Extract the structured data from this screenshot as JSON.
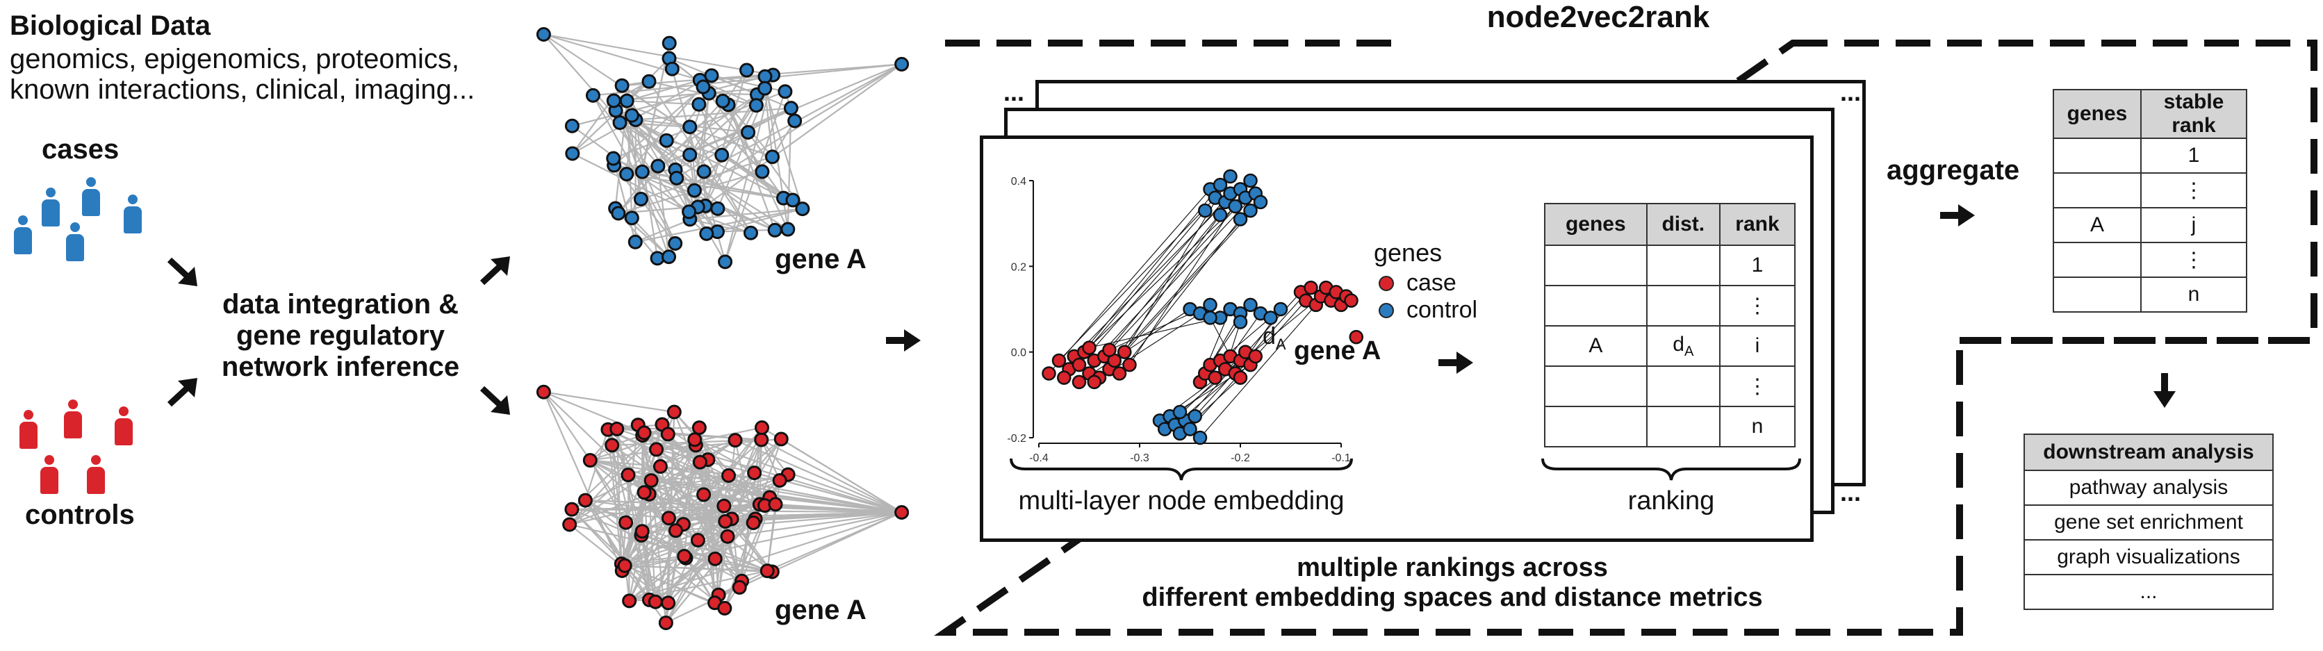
{
  "biological_data": {
    "title": "Biological Data",
    "line1": "genomics, epigenomics, proteomics,",
    "line2": "known interactions, clinical, imaging..."
  },
  "cohorts": {
    "cases": "cases",
    "controls": "controls"
  },
  "integration": {
    "line1": "data integration &",
    "line2": "gene regulatory",
    "line3": "network inference"
  },
  "networks": {
    "top_label": "gene A",
    "bottom_label": "gene A"
  },
  "node2vec2rank": {
    "title": "node2vec2rank",
    "embedding_label": "multi-layer node embedding",
    "ranking_label": "ranking",
    "caption_line1": "multiple rankings across",
    "caption_line2": "different embedding spaces and distance metrics",
    "ellipsis": "..."
  },
  "scatter": {
    "legend_title": "genes",
    "legend_items": [
      "case",
      "control"
    ],
    "point_label": "gene A",
    "distance_label": "d",
    "distance_sub": "A",
    "colors": {
      "case": "#d9242b",
      "control": "#2b7bbf"
    }
  },
  "chart_data": {
    "type": "scatter",
    "xlim": [
      -0.4,
      -0.1
    ],
    "ylim": [
      -0.2,
      0.4
    ],
    "x_ticks": [
      "-0.4",
      "-0.3",
      "-0.2",
      "-0.1"
    ],
    "y_ticks": [
      "0.4",
      "0.2",
      "0.0",
      "-0.2"
    ],
    "series": [
      {
        "name": "case",
        "points": [
          [
            -0.39,
            -0.05
          ],
          [
            -0.38,
            -0.02
          ],
          [
            -0.37,
            -0.04
          ],
          [
            -0.365,
            -0.01
          ],
          [
            -0.36,
            -0.03
          ],
          [
            -0.355,
            0.0
          ],
          [
            -0.35,
            -0.05
          ],
          [
            -0.345,
            -0.02
          ],
          [
            -0.34,
            -0.06
          ],
          [
            -0.335,
            -0.01
          ],
          [
            -0.33,
            -0.04
          ],
          [
            -0.325,
            -0.02
          ],
          [
            -0.32,
            -0.05
          ],
          [
            -0.315,
            0.0
          ],
          [
            -0.31,
            -0.03
          ],
          [
            -0.375,
            -0.06
          ],
          [
            -0.36,
            -0.07
          ],
          [
            -0.345,
            -0.07
          ],
          [
            -0.33,
            0.005
          ],
          [
            -0.35,
            0.01
          ],
          [
            -0.24,
            -0.07
          ],
          [
            -0.235,
            -0.05
          ],
          [
            -0.23,
            -0.03
          ],
          [
            -0.225,
            -0.06
          ],
          [
            -0.22,
            -0.02
          ],
          [
            -0.215,
            -0.04
          ],
          [
            -0.21,
            -0.01
          ],
          [
            -0.205,
            -0.05
          ],
          [
            -0.2,
            -0.02
          ],
          [
            -0.195,
            0.0
          ],
          [
            -0.19,
            -0.03
          ],
          [
            -0.185,
            -0.01
          ],
          [
            -0.2,
            -0.06
          ],
          [
            -0.14,
            0.14
          ],
          [
            -0.135,
            0.12
          ],
          [
            -0.13,
            0.15
          ],
          [
            -0.125,
            0.11
          ],
          [
            -0.12,
            0.13
          ],
          [
            -0.115,
            0.15
          ],
          [
            -0.11,
            0.12
          ],
          [
            -0.105,
            0.14
          ],
          [
            -0.1,
            0.11
          ],
          [
            -0.095,
            0.13
          ],
          [
            -0.09,
            0.12
          ],
          [
            -0.085,
            0.035
          ]
        ]
      },
      {
        "name": "control",
        "points": [
          [
            -0.23,
            0.38
          ],
          [
            -0.225,
            0.36
          ],
          [
            -0.22,
            0.39
          ],
          [
            -0.215,
            0.35
          ],
          [
            -0.21,
            0.37
          ],
          [
            -0.205,
            0.34
          ],
          [
            -0.2,
            0.38
          ],
          [
            -0.195,
            0.36
          ],
          [
            -0.19,
            0.33
          ],
          [
            -0.185,
            0.37
          ],
          [
            -0.18,
            0.35
          ],
          [
            -0.22,
            0.32
          ],
          [
            -0.2,
            0.31
          ],
          [
            -0.21,
            0.41
          ],
          [
            -0.19,
            0.4
          ],
          [
            -0.235,
            0.33
          ],
          [
            -0.25,
            0.1
          ],
          [
            -0.24,
            0.09
          ],
          [
            -0.23,
            0.11
          ],
          [
            -0.22,
            0.08
          ],
          [
            -0.21,
            0.1
          ],
          [
            -0.2,
            0.09
          ],
          [
            -0.19,
            0.11
          ],
          [
            -0.18,
            0.09
          ],
          [
            -0.17,
            0.08
          ],
          [
            -0.2,
            0.07
          ],
          [
            -0.23,
            0.08
          ],
          [
            -0.16,
            0.1
          ],
          [
            -0.28,
            -0.16
          ],
          [
            -0.275,
            -0.18
          ],
          [
            -0.27,
            -0.15
          ],
          [
            -0.265,
            -0.17
          ],
          [
            -0.26,
            -0.19
          ],
          [
            -0.255,
            -0.16
          ],
          [
            -0.25,
            -0.18
          ],
          [
            -0.245,
            -0.15
          ],
          [
            -0.24,
            -0.2
          ],
          [
            -0.26,
            -0.14
          ]
        ]
      }
    ]
  },
  "ranking_table": {
    "headers": [
      "genes",
      "dist.",
      "rank"
    ],
    "rows": [
      [
        "",
        "",
        "1"
      ],
      [
        "",
        "",
        "⋮"
      ],
      [
        "A",
        "dA",
        "i"
      ],
      [
        "",
        "",
        "⋮"
      ],
      [
        "",
        "",
        "n"
      ]
    ]
  },
  "aggregate": {
    "label": "aggregate"
  },
  "stable_table": {
    "headers": [
      "genes",
      "stable rank"
    ],
    "rows": [
      [
        "",
        "1"
      ],
      [
        "",
        "⋮"
      ],
      [
        "A",
        "j"
      ],
      [
        "",
        "⋮"
      ],
      [
        "",
        "n"
      ]
    ]
  },
  "downstream": {
    "header": "downstream analysis",
    "items": [
      "pathway analysis",
      "gene set enrichment",
      "graph visualizations",
      "..."
    ]
  }
}
